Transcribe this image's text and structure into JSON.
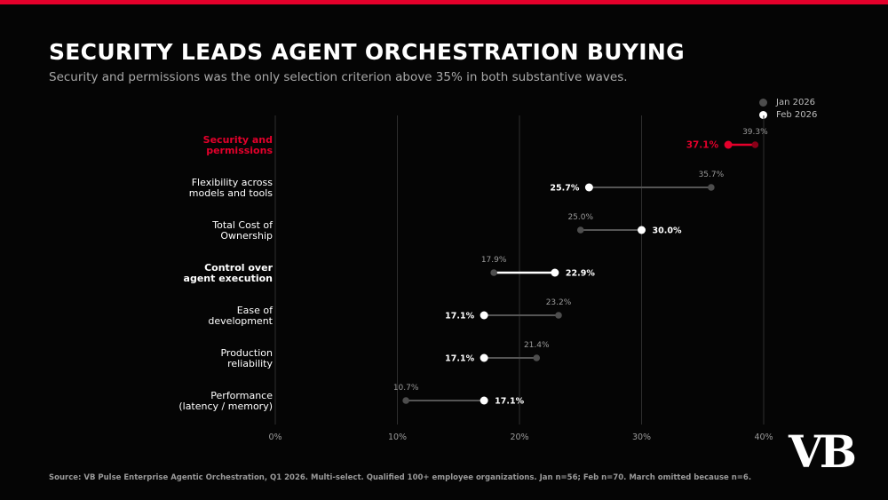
{
  "header": {
    "title": "SECURITY LEADS AGENT ORCHESTRATION BUYING",
    "subtitle": "Security and permissions was the only selection criterion above 35% in both substantive waves."
  },
  "legend": {
    "items": [
      {
        "label": "Jan 2026",
        "color": "#4d4d4d"
      },
      {
        "label": "Feb 2026",
        "color": "#ffffff"
      }
    ]
  },
  "colors": {
    "background": "#050505",
    "accent": "#e4002b",
    "jan": "#4d4d4d",
    "feb": "#ffffff",
    "connector": "#555555",
    "grid": "#2e2e2e",
    "muted_text": "#9a9a9a"
  },
  "chart_data": {
    "type": "dumbbell",
    "xlim": [
      0,
      40
    ],
    "x_ticks": [
      {
        "value": 0,
        "label": "0%"
      },
      {
        "value": 10,
        "label": "10%"
      },
      {
        "value": 20,
        "label": "20%"
      },
      {
        "value": 30,
        "label": "30%"
      },
      {
        "value": 40,
        "label": "40%"
      }
    ],
    "grid": "vertical",
    "legend_position": "top-right",
    "series_names": [
      "Jan 2026",
      "Feb 2026"
    ],
    "rows": [
      {
        "label": [
          "Security and",
          "permissions"
        ],
        "jan": 39.3,
        "feb": 37.1,
        "jan_label": "39.3%",
        "feb_label": "37.1%",
        "style": "highlight"
      },
      {
        "label": [
          "Flexibility across",
          "models and tools"
        ],
        "jan": 35.7,
        "feb": 25.7,
        "jan_label": "35.7%",
        "feb_label": "25.7%",
        "style": "normal"
      },
      {
        "label": [
          "Total Cost of",
          "Ownership"
        ],
        "jan": 25.0,
        "feb": 30.0,
        "jan_label": "25.0%",
        "feb_label": "30.0%",
        "style": "normal"
      },
      {
        "label": [
          "Control over",
          "agent execution"
        ],
        "jan": 17.9,
        "feb": 22.9,
        "jan_label": "17.9%",
        "feb_label": "22.9%",
        "style": "bold"
      },
      {
        "label": [
          "Ease of",
          "development"
        ],
        "jan": 23.2,
        "feb": 17.1,
        "jan_label": "23.2%",
        "feb_label": "17.1%",
        "style": "normal"
      },
      {
        "label": [
          "Production",
          "reliability"
        ],
        "jan": 21.4,
        "feb": 17.1,
        "jan_label": "21.4%",
        "feb_label": "17.1%",
        "style": "normal"
      },
      {
        "label": [
          "Performance",
          "(latency / memory)"
        ],
        "jan": 10.7,
        "feb": 17.1,
        "jan_label": "10.7%",
        "feb_label": "17.1%",
        "style": "normal"
      }
    ]
  },
  "footer": {
    "source": "Source: VB Pulse Enterprise Agentic Orchestration, Q1 2026. Multi-select. Qualified 100+ employee organizations. Jan n=56; Feb n=70. March omitted because n=6."
  },
  "brand": {
    "logo_text": "VB"
  }
}
